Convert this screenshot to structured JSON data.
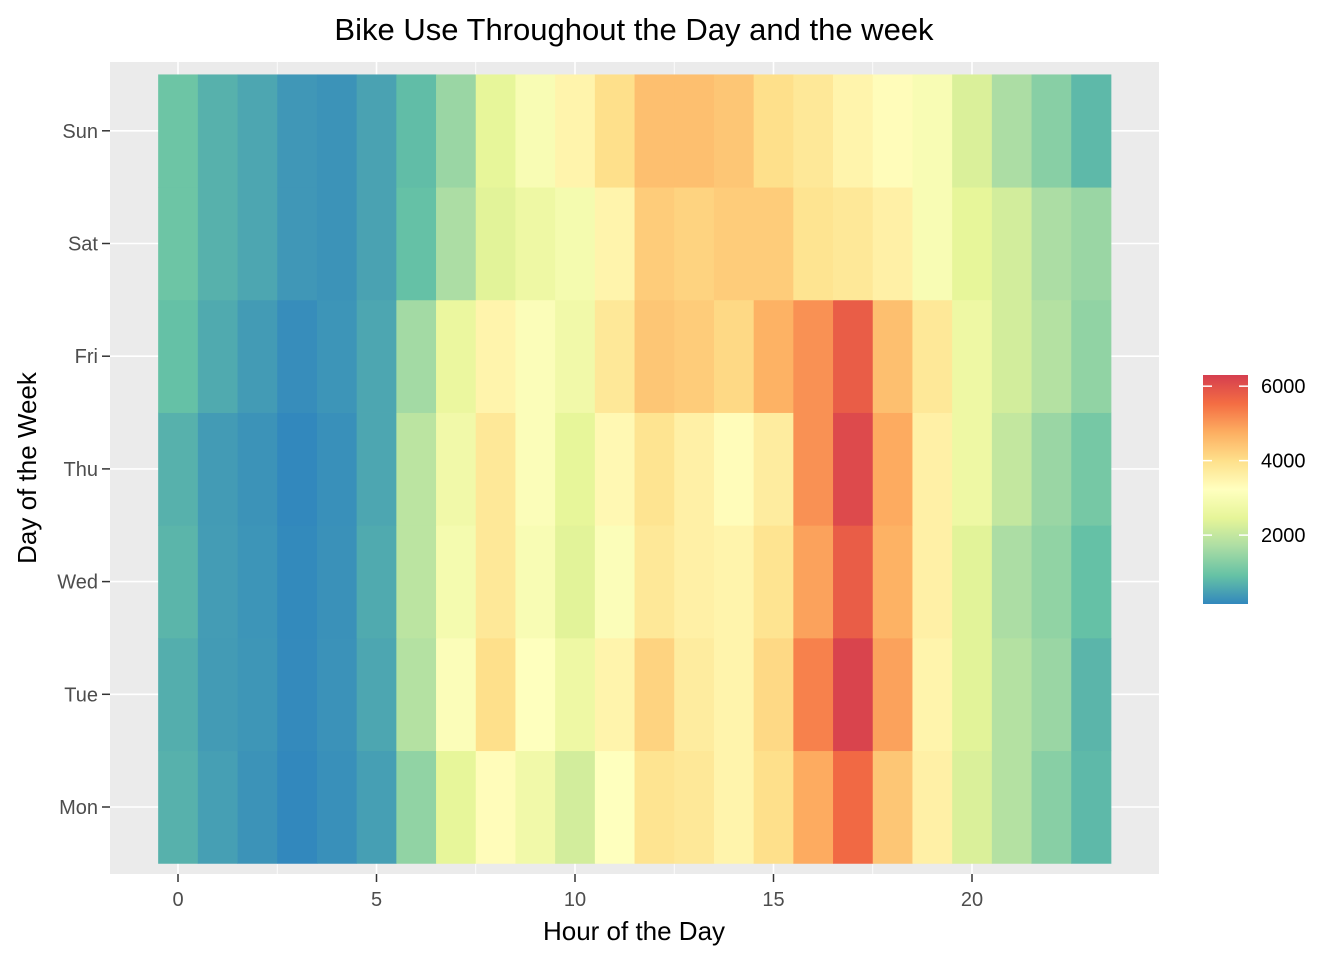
{
  "chart_data": {
    "type": "heatmap",
    "title": "Bike Use Throughout the Day and the week",
    "xlabel": "Hour of the Day",
    "ylabel": "Day of the Week",
    "x": [
      0,
      1,
      2,
      3,
      4,
      5,
      6,
      7,
      8,
      9,
      10,
      11,
      12,
      13,
      14,
      15,
      16,
      17,
      18,
      19,
      20,
      21,
      22,
      23
    ],
    "xlim": [
      -0.5,
      23.5
    ],
    "x_ticks": [
      0,
      5,
      10,
      15,
      20
    ],
    "x_tick_labels": [
      "0",
      "5",
      "10",
      "15",
      "20"
    ],
    "days": [
      "Mon",
      "Tue",
      "Wed",
      "Thu",
      "Fri",
      "Sat",
      "Sun"
    ],
    "values": [
      [
        700,
        450,
        300,
        150,
        250,
        450,
        1400,
        2500,
        3300,
        2800,
        2200,
        3200,
        3900,
        3800,
        3500,
        4000,
        4800,
        5600,
        4400,
        3600,
        2300,
        1800,
        1300,
        800
      ],
      [
        650,
        400,
        330,
        180,
        280,
        550,
        1800,
        3100,
        4000,
        3200,
        2700,
        3500,
        4200,
        3700,
        3500,
        4100,
        5300,
        6200,
        4900,
        3500,
        2400,
        1800,
        1500,
        750
      ],
      [
        750,
        420,
        320,
        170,
        270,
        600,
        1900,
        2900,
        3800,
        3000,
        2400,
        3100,
        3800,
        3600,
        3500,
        3900,
        4900,
        5800,
        4700,
        3600,
        2400,
        1700,
        1400,
        900
      ],
      [
        700,
        400,
        300,
        150,
        250,
        550,
        1900,
        2800,
        3800,
        3100,
        2500,
        3400,
        3900,
        3600,
        3300,
        3700,
        5100,
        6100,
        4800,
        3600,
        2700,
        2000,
        1500,
        1100
      ],
      [
        900,
        600,
        400,
        220,
        320,
        550,
        1600,
        2600,
        3500,
        3100,
        2800,
        3800,
        4400,
        4300,
        4100,
        4700,
        5100,
        5800,
        4500,
        3800,
        2700,
        2200,
        1800,
        1400
      ],
      [
        1000,
        700,
        550,
        350,
        300,
        500,
        900,
        1700,
        2400,
        2700,
        2900,
        3500,
        4300,
        4200,
        4300,
        4300,
        3900,
        3800,
        3600,
        3000,
        2500,
        2200,
        1700,
        1500
      ],
      [
        1000,
        700,
        550,
        350,
        300,
        500,
        850,
        1500,
        2500,
        3000,
        3500,
        4000,
        4500,
        4500,
        4400,
        4000,
        3800,
        3500,
        3300,
        3000,
        2300,
        1700,
        1300,
        800
      ]
    ],
    "fill_range": [
      150,
      6300
    ],
    "legend": {
      "position": "right",
      "ticks": [
        2000,
        4000,
        6000
      ],
      "tick_labels": [
        "2000",
        "4000",
        "6000"
      ],
      "colors": [
        "#3288bd",
        "#66c2a5",
        "#abdda4",
        "#e6f598",
        "#ffffbf",
        "#fee08b",
        "#fdae61",
        "#f46d43",
        "#d53e4f"
      ]
    },
    "grid": true,
    "panel_background": "#ebebeb",
    "grid_color": "#ffffff"
  }
}
